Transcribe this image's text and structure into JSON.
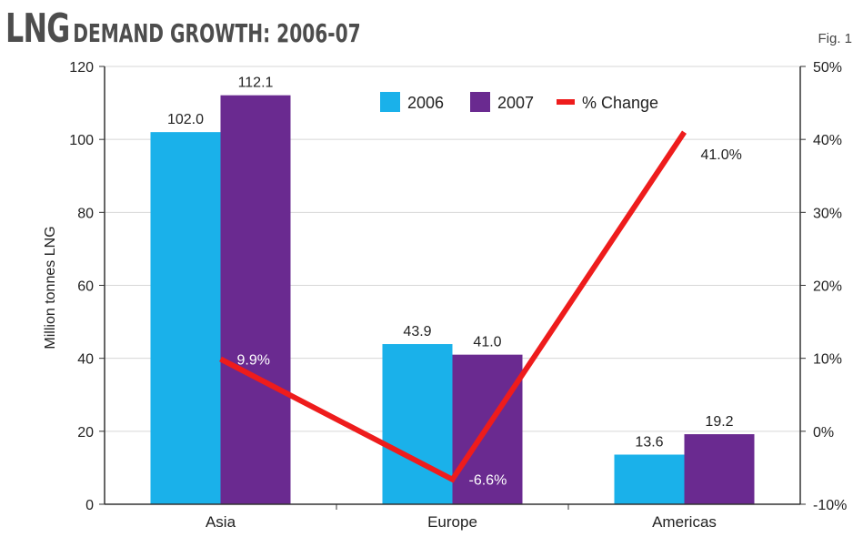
{
  "header": {
    "title_big": "LNG",
    "title_small": "DEMAND GROWTH: 2006-07",
    "fig": "Fig. 1"
  },
  "colors": {
    "s2006": "#1ab1ea",
    "s2007": "#6a2a90",
    "change": "#ee1c1c",
    "grid": "#d7d7d7"
  },
  "chart_data": {
    "type": "bar",
    "title": "LNG DEMAND GROWTH: 2006-07",
    "categories": [
      "Asia",
      "Europe",
      "Americas"
    ],
    "series": [
      {
        "name": "2006",
        "values": [
          102.0,
          43.9,
          13.6
        ],
        "labels": [
          "102.0",
          "43.9",
          "13.6"
        ]
      },
      {
        "name": "2007",
        "values": [
          112.1,
          41.0,
          19.2
        ],
        "labels": [
          "112.1",
          "41.0",
          "19.2"
        ]
      }
    ],
    "line_series": {
      "name": "% Change",
      "values": [
        9.9,
        -6.6,
        41.0
      ],
      "labels": [
        "9.9%",
        "-6.6%",
        "41.0%"
      ],
      "axis": "right"
    },
    "ylabel": "Million tonnes LNG",
    "ylim": [
      0,
      120
    ],
    "yticks": [
      "0",
      "20",
      "40",
      "60",
      "80",
      "100",
      "120"
    ],
    "y2lim": [
      -10,
      50
    ],
    "y2ticks": [
      "-10%",
      "0%",
      "10%",
      "20%",
      "30%",
      "40%",
      "50%"
    ],
    "grid": true,
    "legend": "top-center"
  }
}
